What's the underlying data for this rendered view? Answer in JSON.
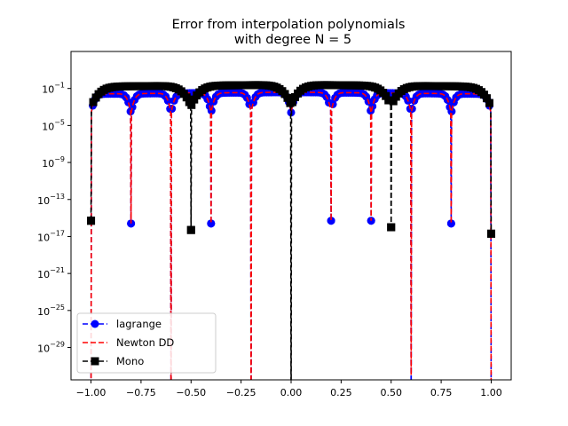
{
  "chart_data": {
    "type": "line",
    "title": "Error from interpolation polynomials",
    "subtitle": "with degree N = 5",
    "xlabel": "",
    "ylabel": "",
    "xlim": [
      -1.1,
      1.1
    ],
    "y_log10_lim": [
      -32.5,
      3.0
    ],
    "y_scale": "log",
    "grid": false,
    "legend_position": "lower-left",
    "x_ticks": [
      {
        "value": -1.0,
        "label": "−1.00"
      },
      {
        "value": -0.75,
        "label": "−0.75"
      },
      {
        "value": -0.5,
        "label": "−0.50"
      },
      {
        "value": -0.25,
        "label": "−0.25"
      },
      {
        "value": 0.0,
        "label": "0.00"
      },
      {
        "value": 0.25,
        "label": "0.25"
      },
      {
        "value": 0.5,
        "label": "0.50"
      },
      {
        "value": 0.75,
        "label": "0.75"
      },
      {
        "value": 1.0,
        "label": "1.00"
      }
    ],
    "y_ticks": [
      {
        "exp": -1,
        "base": "10",
        "sup": "−1"
      },
      {
        "exp": -5,
        "base": "10",
        "sup": "−5"
      },
      {
        "exp": -9,
        "base": "10",
        "sup": "−9"
      },
      {
        "exp": -13,
        "base": "10",
        "sup": "−13"
      },
      {
        "exp": -17,
        "base": "10",
        "sup": "−17"
      },
      {
        "exp": -21,
        "base": "10",
        "sup": "−21"
      },
      {
        "exp": -25,
        "base": "10",
        "sup": "−25"
      },
      {
        "exp": -29,
        "base": "10",
        "sup": "−29"
      }
    ],
    "series": [
      {
        "name": "lagrange",
        "color": "#0000ff",
        "marker": "circle",
        "line": "dashed",
        "level_log10": -1.4,
        "nodes_x": [
          -1.0,
          -0.8,
          -0.6,
          -0.4,
          -0.2,
          0.0,
          0.2,
          0.4,
          0.6,
          0.8,
          1.0
        ],
        "dips": [
          {
            "x": -1.0,
            "log10": -40
          },
          {
            "x": -0.8,
            "log10": -15.6
          },
          {
            "x": -0.6,
            "log10": -40
          },
          {
            "x": -0.4,
            "log10": -15.6
          },
          {
            "x": -0.2,
            "log10": -40
          },
          {
            "x": 0.2,
            "log10": -15.3
          },
          {
            "x": 0.4,
            "log10": -15.3
          },
          {
            "x": 0.6,
            "log10": -40
          },
          {
            "x": 0.8,
            "log10": -15.6
          },
          {
            "x": 1.0,
            "log10": -40
          }
        ]
      },
      {
        "name": "Newton DD",
        "color": "#ff0000",
        "marker": "none",
        "line": "dashed",
        "level_log10": -1.4,
        "nodes_x": [
          -1.0,
          -0.8,
          -0.6,
          -0.4,
          -0.2,
          0.0,
          0.2,
          0.4,
          0.6,
          0.8,
          1.0
        ],
        "dips": [
          {
            "x": -1.0,
            "log10": -40
          },
          {
            "x": -0.8,
            "log10": -15.6
          },
          {
            "x": -0.6,
            "log10": -40
          },
          {
            "x": -0.4,
            "log10": -15.6
          },
          {
            "x": -0.2,
            "log10": -40
          },
          {
            "x": 0.2,
            "log10": -15.3
          },
          {
            "x": 0.4,
            "log10": -15.3
          },
          {
            "x": 0.6,
            "log10": -32.0
          },
          {
            "x": 0.8,
            "log10": -15.6
          },
          {
            "x": 1.0,
            "log10": -40
          }
        ]
      },
      {
        "name": "Mono",
        "color": "#000000",
        "marker": "square",
        "line": "dashed",
        "level_log10": -0.6,
        "nodes_x": [
          -1.0,
          -0.5,
          0.0,
          0.5,
          1.0
        ],
        "dips": [
          {
            "x": -1.0,
            "log10": -15.3
          },
          {
            "x": -0.5,
            "log10": -16.3
          },
          {
            "x": 0.0,
            "log10": -40
          },
          {
            "x": 0.5,
            "log10": -16.0
          },
          {
            "x": 1.0,
            "log10": -16.7
          }
        ]
      }
    ]
  }
}
